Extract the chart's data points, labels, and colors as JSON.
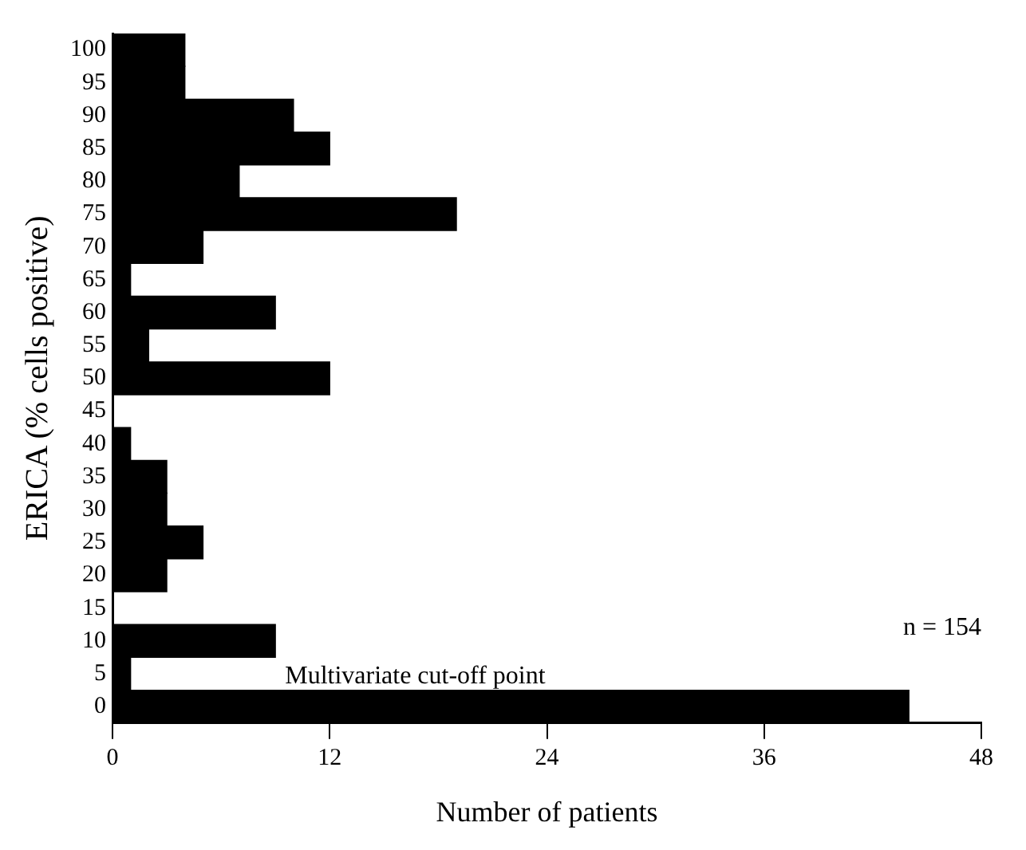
{
  "chart_data": {
    "type": "bar",
    "orientation": "horizontal",
    "xlabel": "Number of patients",
    "ylabel": "ERICA (% cells positive)",
    "categories": [
      "100",
      "95",
      "90",
      "85",
      "80",
      "75",
      "70",
      "65",
      "60",
      "55",
      "50",
      "45",
      "40",
      "35",
      "30",
      "25",
      "20",
      "15",
      "10",
      "5",
      "0"
    ],
    "values": [
      4,
      4,
      10,
      12,
      7,
      19,
      5,
      1,
      9,
      2,
      12,
      0,
      1,
      3,
      3,
      5,
      3,
      0,
      9,
      1,
      44
    ],
    "color": "#000000",
    "xlim": [
      0,
      48
    ],
    "xticks": [
      0,
      12,
      24,
      36,
      48
    ],
    "grid": false,
    "legend": false,
    "annotations": [
      "n = 154",
      "Multivariate cut-off point"
    ]
  }
}
